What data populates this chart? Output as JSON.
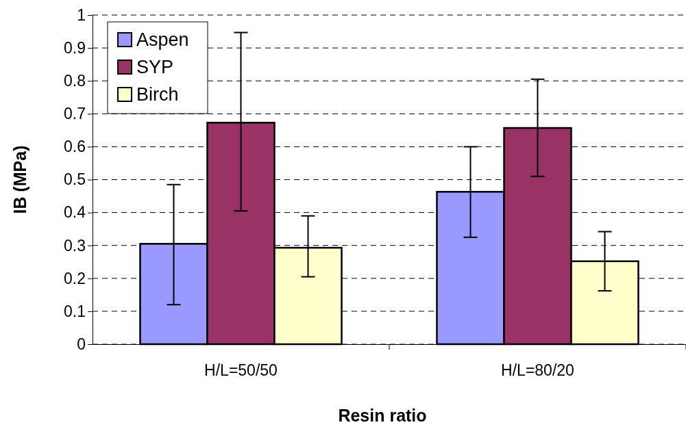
{
  "chart_data": {
    "type": "bar",
    "xlabel": "Resin ratio",
    "ylabel": "IB (MPa)",
    "categories": [
      "H/L=50/50",
      "H/L=80/20"
    ],
    "series": [
      {
        "name": "Aspen",
        "color": "#9999ff",
        "values": [
          0.305,
          0.463
        ],
        "errors": [
          [
            0.12,
            0.485
          ],
          [
            0.325,
            0.6
          ]
        ]
      },
      {
        "name": "SYP",
        "color": "#993366",
        "values": [
          0.673,
          0.657
        ],
        "errors": [
          [
            0.405,
            0.947
          ],
          [
            0.51,
            0.805
          ]
        ]
      },
      {
        "name": "Birch",
        "color": "#ffffcc",
        "values": [
          0.293,
          0.252
        ],
        "errors": [
          [
            0.205,
            0.39
          ],
          [
            0.162,
            0.342
          ]
        ]
      }
    ],
    "ylim": [
      0,
      1
    ],
    "yticks": [
      0,
      0.1,
      0.2,
      0.3,
      0.4,
      0.5,
      0.6,
      0.7,
      0.8,
      0.9,
      1
    ],
    "grid": "y",
    "legend": "top left"
  }
}
